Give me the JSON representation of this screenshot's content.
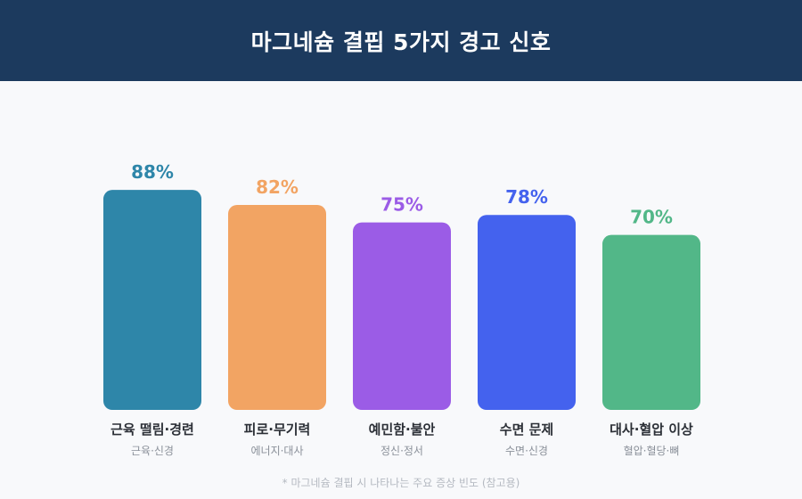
{
  "header": {
    "title": "마그네슘 결핍 5가지 경고 신호"
  },
  "footnote": "* 마그네슘 결핍 시 나타나는 주요 증상 빈도 (참고용)",
  "chart_data": {
    "type": "bar",
    "title": "마그네슘 결핍 5가지 경고 신호",
    "ylim": [
      0,
      100
    ],
    "grid": false,
    "legend": "none",
    "categories": [
      "근육 떨림·경련",
      "피로·무기력",
      "예민함·불안",
      "수면 문제",
      "대사·혈압 이상"
    ],
    "sublabels": [
      "근육·신경",
      "에너지·대사",
      "정신·정서",
      "수면·신경",
      "혈압·혈당·뼈"
    ],
    "values": [
      88,
      82,
      75,
      78,
      70
    ],
    "value_labels": [
      "88%",
      "82%",
      "75%",
      "78%",
      "70%"
    ],
    "colors": [
      "#2e86a9",
      "#f2a463",
      "#9b5ce6",
      "#4462ee",
      "#52b788"
    ]
  }
}
